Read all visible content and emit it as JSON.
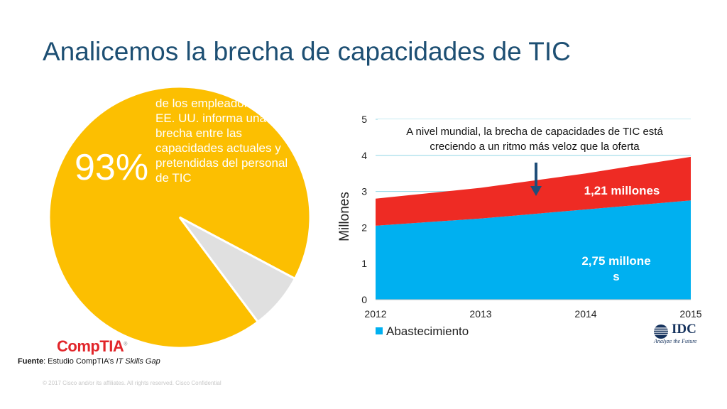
{
  "slide": {
    "title": "Analicemos la brecha de capacidades de TIC",
    "footer": "© 2017  Cisco and/or its affiliates. All rights reserved.   Cisco Confidential",
    "source": {
      "bold": "Fuente",
      "text": ": Estudio CompTIA’s ",
      "italic": "IT Skills Gap"
    },
    "logos": {
      "comptia": "CompTIA",
      "idc": "IDC",
      "idc_tagline": "Analyze the Future"
    }
  },
  "colors": {
    "title": "#1d4f73",
    "pie_main": "#fcbf01",
    "pie_rest": "#e0e0e0",
    "supply": "#00b0f0",
    "gap": "#ee2b24",
    "arrow": "#1f4e79",
    "comptia": "#e1252a"
  },
  "chart_data": [
    {
      "type": "pie",
      "slices": [
        {
          "label": "93%",
          "value": 93,
          "color": "#fcbf01"
        },
        {
          "label": "",
          "value": 7,
          "color": "#e0e0e0"
        }
      ],
      "annotation": "de los empleadores en los EE. UU. informa una brecha entre las capacidades actuales y pretendidas del personal de TIC"
    },
    {
      "type": "area",
      "stacked": true,
      "x": [
        2012,
        2013,
        2014,
        2015
      ],
      "xticks": [
        "2012",
        "2013",
        "2014",
        "2015"
      ],
      "yticks": [
        "0",
        "1",
        "2",
        "3",
        "4",
        "5"
      ],
      "ylim": [
        0,
        5
      ],
      "ylabel": "Millones",
      "grid": true,
      "series": [
        {
          "name": "Abastecimiento",
          "values": [
            2.05,
            2.25,
            2.5,
            2.75
          ],
          "color": "#00b0f0"
        },
        {
          "name": "",
          "values": [
            0.75,
            0.85,
            1.0,
            1.21
          ],
          "color": "#ee2b24"
        }
      ],
      "annotation": "A nivel mundial, la brecha de capacidades de TIC está creciendo a un ritmo más veloz que la oferta",
      "gap_label": "1,21 millones",
      "supply_label": "2,75 millone\ns",
      "legend": "Abastecimiento",
      "legend_position": "bottom-left"
    }
  ]
}
